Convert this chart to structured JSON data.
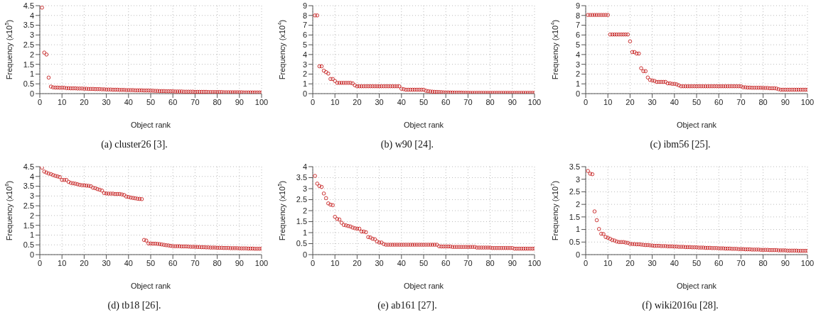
{
  "chart_data": [
    {
      "type": "scatter",
      "title": "(a) cluster26 [3].",
      "xlabel": "Object rank",
      "ylabel": "Frequency (x10$^{5}$)",
      "xlim": [
        0,
        100
      ],
      "xticks": [
        0,
        10,
        20,
        30,
        40,
        50,
        60,
        70,
        80,
        90,
        100
      ],
      "ylim": [
        0,
        4.5
      ],
      "yticks": [
        0,
        0.5,
        1,
        1.5,
        2,
        2.5,
        3,
        3.5,
        4,
        4.5
      ],
      "grid": true,
      "marker": "circle",
      "legend": false,
      "x": [
        1,
        2,
        3,
        4,
        5,
        6,
        7,
        8,
        9,
        10,
        11,
        12,
        13,
        14,
        15,
        16,
        17,
        18,
        19,
        20,
        21,
        22,
        23,
        24,
        25,
        26,
        27,
        28,
        29,
        30,
        31,
        32,
        33,
        34,
        35,
        36,
        37,
        38,
        39,
        40,
        41,
        42,
        43,
        44,
        45,
        46,
        47,
        48,
        49,
        50,
        51,
        52,
        53,
        54,
        55,
        56,
        57,
        58,
        59,
        60,
        61,
        62,
        63,
        64,
        65,
        66,
        67,
        68,
        69,
        70,
        71,
        72,
        73,
        74,
        75,
        76,
        77,
        78,
        79,
        80,
        81,
        82,
        83,
        84,
        85,
        86,
        87,
        88,
        89,
        90,
        91,
        92,
        93,
        94,
        95,
        96,
        97,
        98,
        99,
        100
      ],
      "series": [
        {
          "color": "#cc3333",
          "values": [
            4.4,
            2.1,
            2.0,
            0.82,
            0.36,
            0.32,
            0.31,
            0.31,
            0.3,
            0.3,
            0.3,
            0.28,
            0.28,
            0.27,
            0.27,
            0.27,
            0.26,
            0.26,
            0.26,
            0.25,
            0.25,
            0.24,
            0.24,
            0.24,
            0.23,
            0.23,
            0.23,
            0.22,
            0.22,
            0.21,
            0.21,
            0.21,
            0.2,
            0.2,
            0.2,
            0.19,
            0.19,
            0.19,
            0.18,
            0.18,
            0.18,
            0.18,
            0.17,
            0.17,
            0.17,
            0.17,
            0.16,
            0.16,
            0.16,
            0.15,
            0.15,
            0.14,
            0.14,
            0.13,
            0.13,
            0.13,
            0.12,
            0.12,
            0.12,
            0.12,
            0.11,
            0.11,
            0.11,
            0.11,
            0.1,
            0.1,
            0.1,
            0.1,
            0.1,
            0.09,
            0.09,
            0.09,
            0.09,
            0.09,
            0.09,
            0.08,
            0.08,
            0.08,
            0.08,
            0.08,
            0.08,
            0.08,
            0.07,
            0.07,
            0.07,
            0.07,
            0.07,
            0.07,
            0.07,
            0.07,
            0.07,
            0.06,
            0.06,
            0.06,
            0.06,
            0.06,
            0.06,
            0.06,
            0.06,
            0.06
          ]
        }
      ]
    },
    {
      "type": "scatter",
      "title": "(b) w90 [24].",
      "xlabel": "Object rank",
      "ylabel": "Frequency (x10$^{4}$)",
      "xlim": [
        0,
        100
      ],
      "xticks": [
        0,
        10,
        20,
        30,
        40,
        50,
        60,
        70,
        80,
        90,
        100
      ],
      "ylim": [
        0,
        9
      ],
      "yticks": [
        0,
        1,
        2,
        3,
        4,
        5,
        6,
        7,
        8,
        9
      ],
      "grid": true,
      "marker": "circle",
      "legend": false,
      "x": [
        1,
        2,
        3,
        4,
        5,
        6,
        7,
        8,
        9,
        10,
        11,
        12,
        13,
        14,
        15,
        16,
        17,
        18,
        19,
        20,
        21,
        22,
        23,
        24,
        25,
        26,
        27,
        28,
        29,
        30,
        31,
        32,
        33,
        34,
        35,
        36,
        37,
        38,
        39,
        40,
        41,
        42,
        43,
        44,
        45,
        46,
        47,
        48,
        49,
        50,
        51,
        52,
        53,
        54,
        55,
        56,
        57,
        58,
        59,
        60,
        61,
        62,
        63,
        64,
        65,
        66,
        67,
        68,
        69,
        70,
        71,
        72,
        73,
        74,
        75,
        76,
        77,
        78,
        79,
        80,
        81,
        82,
        83,
        84,
        85,
        86,
        87,
        88,
        89,
        90,
        91,
        92,
        93,
        94,
        95,
        96,
        97,
        98,
        99,
        100
      ],
      "series": [
        {
          "color": "#cc3333",
          "values": [
            8.0,
            8.0,
            2.8,
            2.8,
            2.35,
            2.2,
            2.05,
            1.5,
            1.5,
            1.3,
            1.1,
            1.1,
            1.1,
            1.1,
            1.1,
            1.1,
            1.1,
            1.05,
            0.85,
            0.75,
            0.75,
            0.75,
            0.75,
            0.75,
            0.75,
            0.75,
            0.75,
            0.75,
            0.75,
            0.75,
            0.75,
            0.75,
            0.75,
            0.75,
            0.75,
            0.75,
            0.75,
            0.75,
            0.75,
            0.5,
            0.45,
            0.4,
            0.4,
            0.4,
            0.4,
            0.4,
            0.4,
            0.4,
            0.4,
            0.4,
            0.3,
            0.25,
            0.22,
            0.2,
            0.18,
            0.17,
            0.16,
            0.15,
            0.13,
            0.12,
            0.12,
            0.11,
            0.11,
            0.1,
            0.1,
            0.1,
            0.1,
            0.09,
            0.09,
            0.09,
            0.08,
            0.08,
            0.08,
            0.08,
            0.08,
            0.08,
            0.08,
            0.08,
            0.08,
            0.08,
            0.08,
            0.08,
            0.08,
            0.08,
            0.08,
            0.08,
            0.08,
            0.08,
            0.08,
            0.08,
            0.08,
            0.08,
            0.08,
            0.08,
            0.08,
            0.08,
            0.08,
            0.08,
            0.08,
            0.08
          ]
        }
      ]
    },
    {
      "type": "scatter",
      "title": "(c) ibm56 [25].",
      "xlabel": "Object rank",
      "ylabel": "Frequency (x10$^{4}$)",
      "xlim": [
        0,
        100
      ],
      "xticks": [
        0,
        10,
        20,
        30,
        40,
        50,
        60,
        70,
        80,
        90,
        100
      ],
      "ylim": [
        0,
        9
      ],
      "yticks": [
        0,
        1,
        2,
        3,
        4,
        5,
        6,
        7,
        8,
        9
      ],
      "grid": true,
      "marker": "circle",
      "legend": false,
      "x": [
        1,
        2,
        3,
        4,
        5,
        6,
        7,
        8,
        9,
        10,
        11,
        12,
        13,
        14,
        15,
        16,
        17,
        18,
        19,
        20,
        21,
        22,
        23,
        24,
        25,
        26,
        27,
        28,
        29,
        30,
        31,
        32,
        33,
        34,
        35,
        36,
        37,
        38,
        39,
        40,
        41,
        42,
        43,
        44,
        45,
        46,
        47,
        48,
        49,
        50,
        51,
        52,
        53,
        54,
        55,
        56,
        57,
        58,
        59,
        60,
        61,
        62,
        63,
        64,
        65,
        66,
        67,
        68,
        69,
        70,
        71,
        72,
        73,
        74,
        75,
        76,
        77,
        78,
        79,
        80,
        81,
        82,
        83,
        84,
        85,
        86,
        87,
        88,
        89,
        90,
        91,
        92,
        93,
        94,
        95,
        96,
        97,
        98,
        99,
        100
      ],
      "series": [
        {
          "color": "#cc3333",
          "values": [
            8.05,
            8.05,
            8.05,
            8.05,
            8.05,
            8.05,
            8.05,
            8.05,
            8.05,
            8.05,
            6.05,
            6.05,
            6.05,
            6.05,
            6.05,
            6.05,
            6.05,
            6.05,
            6.05,
            5.35,
            4.25,
            4.25,
            4.1,
            4.1,
            2.6,
            2.3,
            2.3,
            1.65,
            1.4,
            1.35,
            1.3,
            1.2,
            1.2,
            1.2,
            1.2,
            1.2,
            1.05,
            1.05,
            1.0,
            1.0,
            0.95,
            0.85,
            0.75,
            0.75,
            0.75,
            0.75,
            0.75,
            0.75,
            0.75,
            0.75,
            0.75,
            0.75,
            0.75,
            0.75,
            0.75,
            0.75,
            0.75,
            0.75,
            0.75,
            0.75,
            0.75,
            0.75,
            0.75,
            0.75,
            0.75,
            0.75,
            0.75,
            0.75,
            0.75,
            0.75,
            0.65,
            0.65,
            0.62,
            0.62,
            0.6,
            0.6,
            0.6,
            0.6,
            0.6,
            0.58,
            0.58,
            0.58,
            0.55,
            0.55,
            0.55,
            0.52,
            0.45,
            0.4,
            0.4,
            0.4,
            0.4,
            0.4,
            0.4,
            0.4,
            0.4,
            0.4,
            0.4,
            0.4,
            0.4,
            0.4
          ]
        }
      ]
    },
    {
      "type": "scatter",
      "title": "(d) tb18 [26].",
      "xlabel": "Object rank",
      "ylabel": "Frequency (x10$^{6}$)",
      "xlim": [
        0,
        100
      ],
      "xticks": [
        0,
        10,
        20,
        30,
        40,
        50,
        60,
        70,
        80,
        90,
        100
      ],
      "ylim": [
        0,
        4.5
      ],
      "yticks": [
        0,
        0.5,
        1,
        1.5,
        2,
        2.5,
        3,
        3.5,
        4,
        4.5
      ],
      "grid": true,
      "marker": "circle",
      "legend": false,
      "x": [
        1,
        2,
        3,
        4,
        5,
        6,
        7,
        8,
        9,
        10,
        11,
        12,
        13,
        14,
        15,
        16,
        17,
        18,
        19,
        20,
        21,
        22,
        23,
        24,
        25,
        26,
        27,
        28,
        29,
        30,
        31,
        32,
        33,
        34,
        35,
        36,
        37,
        38,
        39,
        40,
        41,
        42,
        43,
        44,
        45,
        46,
        47,
        48,
        49,
        50,
        51,
        52,
        53,
        54,
        55,
        56,
        57,
        58,
        59,
        60,
        61,
        62,
        63,
        64,
        65,
        66,
        67,
        68,
        69,
        70,
        71,
        72,
        73,
        74,
        75,
        76,
        77,
        78,
        79,
        80,
        81,
        82,
        83,
        84,
        85,
        86,
        87,
        88,
        89,
        90,
        91,
        92,
        93,
        94,
        95,
        96,
        97,
        98,
        99,
        100
      ],
      "series": [
        {
          "color": "#cc3333",
          "values": [
            4.45,
            4.25,
            4.2,
            4.15,
            4.12,
            4.07,
            4.03,
            4.0,
            3.97,
            3.82,
            3.82,
            3.82,
            3.72,
            3.67,
            3.65,
            3.63,
            3.6,
            3.57,
            3.55,
            3.55,
            3.53,
            3.52,
            3.5,
            3.42,
            3.4,
            3.35,
            3.32,
            3.28,
            3.15,
            3.13,
            3.12,
            3.12,
            3.12,
            3.1,
            3.1,
            3.1,
            3.08,
            3.05,
            2.97,
            2.95,
            2.92,
            2.9,
            2.88,
            2.86,
            2.85,
            2.84,
            0.75,
            0.72,
            0.57,
            0.57,
            0.56,
            0.56,
            0.55,
            0.54,
            0.52,
            0.5,
            0.48,
            0.47,
            0.45,
            0.43,
            0.43,
            0.43,
            0.43,
            0.42,
            0.42,
            0.42,
            0.41,
            0.4,
            0.4,
            0.4,
            0.39,
            0.39,
            0.38,
            0.38,
            0.37,
            0.37,
            0.36,
            0.36,
            0.36,
            0.35,
            0.35,
            0.35,
            0.34,
            0.34,
            0.34,
            0.33,
            0.33,
            0.33,
            0.33,
            0.32,
            0.32,
            0.32,
            0.32,
            0.31,
            0.31,
            0.31,
            0.3,
            0.3,
            0.3,
            0.3
          ]
        }
      ]
    },
    {
      "type": "scatter",
      "title": "(e) ab161 [27].",
      "xlabel": "Object rank",
      "ylabel": "Frequency (x10$^{5}$)",
      "xlim": [
        0,
        100
      ],
      "xticks": [
        0,
        10,
        20,
        30,
        40,
        50,
        60,
        70,
        80,
        90,
        100
      ],
      "ylim": [
        0,
        4
      ],
      "yticks": [
        0,
        0.5,
        1,
        1.5,
        2,
        2.5,
        3,
        3.5,
        4
      ],
      "grid": true,
      "marker": "circle",
      "legend": false,
      "x": [
        1,
        2,
        3,
        4,
        5,
        6,
        7,
        8,
        9,
        10,
        11,
        12,
        13,
        14,
        15,
        16,
        17,
        18,
        19,
        20,
        21,
        22,
        23,
        24,
        25,
        26,
        27,
        28,
        29,
        30,
        31,
        32,
        33,
        34,
        35,
        36,
        37,
        38,
        39,
        40,
        41,
        42,
        43,
        44,
        45,
        46,
        47,
        48,
        49,
        50,
        51,
        52,
        53,
        54,
        55,
        56,
        57,
        58,
        59,
        60,
        61,
        62,
        63,
        64,
        65,
        66,
        67,
        68,
        69,
        70,
        71,
        72,
        73,
        74,
        75,
        76,
        77,
        78,
        79,
        80,
        81,
        82,
        83,
        84,
        85,
        86,
        87,
        88,
        89,
        90,
        91,
        92,
        93,
        94,
        95,
        96,
        97,
        98,
        99,
        100
      ],
      "series": [
        {
          "color": "#cc3333",
          "values": [
            3.58,
            3.23,
            3.12,
            3.08,
            2.78,
            2.57,
            2.33,
            2.27,
            2.25,
            1.72,
            1.62,
            1.6,
            1.45,
            1.35,
            1.33,
            1.3,
            1.28,
            1.23,
            1.2,
            1.18,
            1.18,
            1.05,
            1.05,
            1.02,
            0.8,
            0.78,
            0.72,
            0.7,
            0.6,
            0.55,
            0.55,
            0.48,
            0.45,
            0.45,
            0.45,
            0.45,
            0.45,
            0.45,
            0.45,
            0.45,
            0.45,
            0.45,
            0.45,
            0.45,
            0.45,
            0.45,
            0.45,
            0.45,
            0.45,
            0.45,
            0.45,
            0.45,
            0.45,
            0.45,
            0.45,
            0.45,
            0.38,
            0.37,
            0.37,
            0.37,
            0.37,
            0.37,
            0.35,
            0.35,
            0.35,
            0.35,
            0.35,
            0.35,
            0.35,
            0.35,
            0.35,
            0.35,
            0.35,
            0.32,
            0.32,
            0.32,
            0.32,
            0.32,
            0.32,
            0.32,
            0.3,
            0.3,
            0.3,
            0.3,
            0.3,
            0.3,
            0.3,
            0.3,
            0.3,
            0.3,
            0.27,
            0.27,
            0.27,
            0.27,
            0.27,
            0.27,
            0.27,
            0.27,
            0.27,
            0.27
          ]
        }
      ]
    },
    {
      "type": "scatter",
      "title": "(f) wiki2016u [28].",
      "xlabel": "Object rank",
      "ylabel": "Frequency (x10$^{7}$)",
      "xlim": [
        0,
        100
      ],
      "xticks": [
        0,
        10,
        20,
        30,
        40,
        50,
        60,
        70,
        80,
        90,
        100
      ],
      "ylim": [
        0,
        3.5
      ],
      "yticks": [
        0,
        0.5,
        1,
        1.5,
        2,
        2.5,
        3,
        3.5
      ],
      "grid": true,
      "marker": "circle",
      "legend": false,
      "x": [
        1,
        2,
        3,
        4,
        5,
        6,
        7,
        8,
        9,
        10,
        11,
        12,
        13,
        14,
        15,
        16,
        17,
        18,
        19,
        20,
        21,
        22,
        23,
        24,
        25,
        26,
        27,
        28,
        29,
        30,
        31,
        32,
        33,
        34,
        35,
        36,
        37,
        38,
        39,
        40,
        41,
        42,
        43,
        44,
        45,
        46,
        47,
        48,
        49,
        50,
        51,
        52,
        53,
        54,
        55,
        56,
        57,
        58,
        59,
        60,
        61,
        62,
        63,
        64,
        65,
        66,
        67,
        68,
        69,
        70,
        71,
        72,
        73,
        74,
        75,
        76,
        77,
        78,
        79,
        80,
        81,
        82,
        83,
        84,
        85,
        86,
        87,
        88,
        89,
        90,
        91,
        92,
        93,
        94,
        95,
        96,
        97,
        98,
        99,
        100
      ],
      "series": [
        {
          "color": "#cc3333",
          "values": [
            3.33,
            3.22,
            3.2,
            1.72,
            1.37,
            1.02,
            0.83,
            0.82,
            0.7,
            0.67,
            0.63,
            0.58,
            0.56,
            0.52,
            0.5,
            0.5,
            0.5,
            0.48,
            0.47,
            0.43,
            0.42,
            0.42,
            0.41,
            0.41,
            0.4,
            0.39,
            0.38,
            0.38,
            0.37,
            0.36,
            0.35,
            0.35,
            0.35,
            0.34,
            0.34,
            0.34,
            0.33,
            0.33,
            0.33,
            0.32,
            0.32,
            0.31,
            0.31,
            0.31,
            0.3,
            0.3,
            0.3,
            0.29,
            0.29,
            0.29,
            0.28,
            0.28,
            0.28,
            0.27,
            0.27,
            0.27,
            0.26,
            0.26,
            0.26,
            0.25,
            0.25,
            0.25,
            0.24,
            0.24,
            0.24,
            0.23,
            0.23,
            0.23,
            0.22,
            0.22,
            0.22,
            0.21,
            0.21,
            0.21,
            0.2,
            0.2,
            0.2,
            0.2,
            0.19,
            0.19,
            0.19,
            0.19,
            0.18,
            0.18,
            0.18,
            0.18,
            0.17,
            0.17,
            0.17,
            0.17,
            0.16,
            0.16,
            0.16,
            0.16,
            0.16,
            0.15,
            0.15,
            0.15,
            0.15,
            0.15
          ]
        }
      ]
    }
  ]
}
